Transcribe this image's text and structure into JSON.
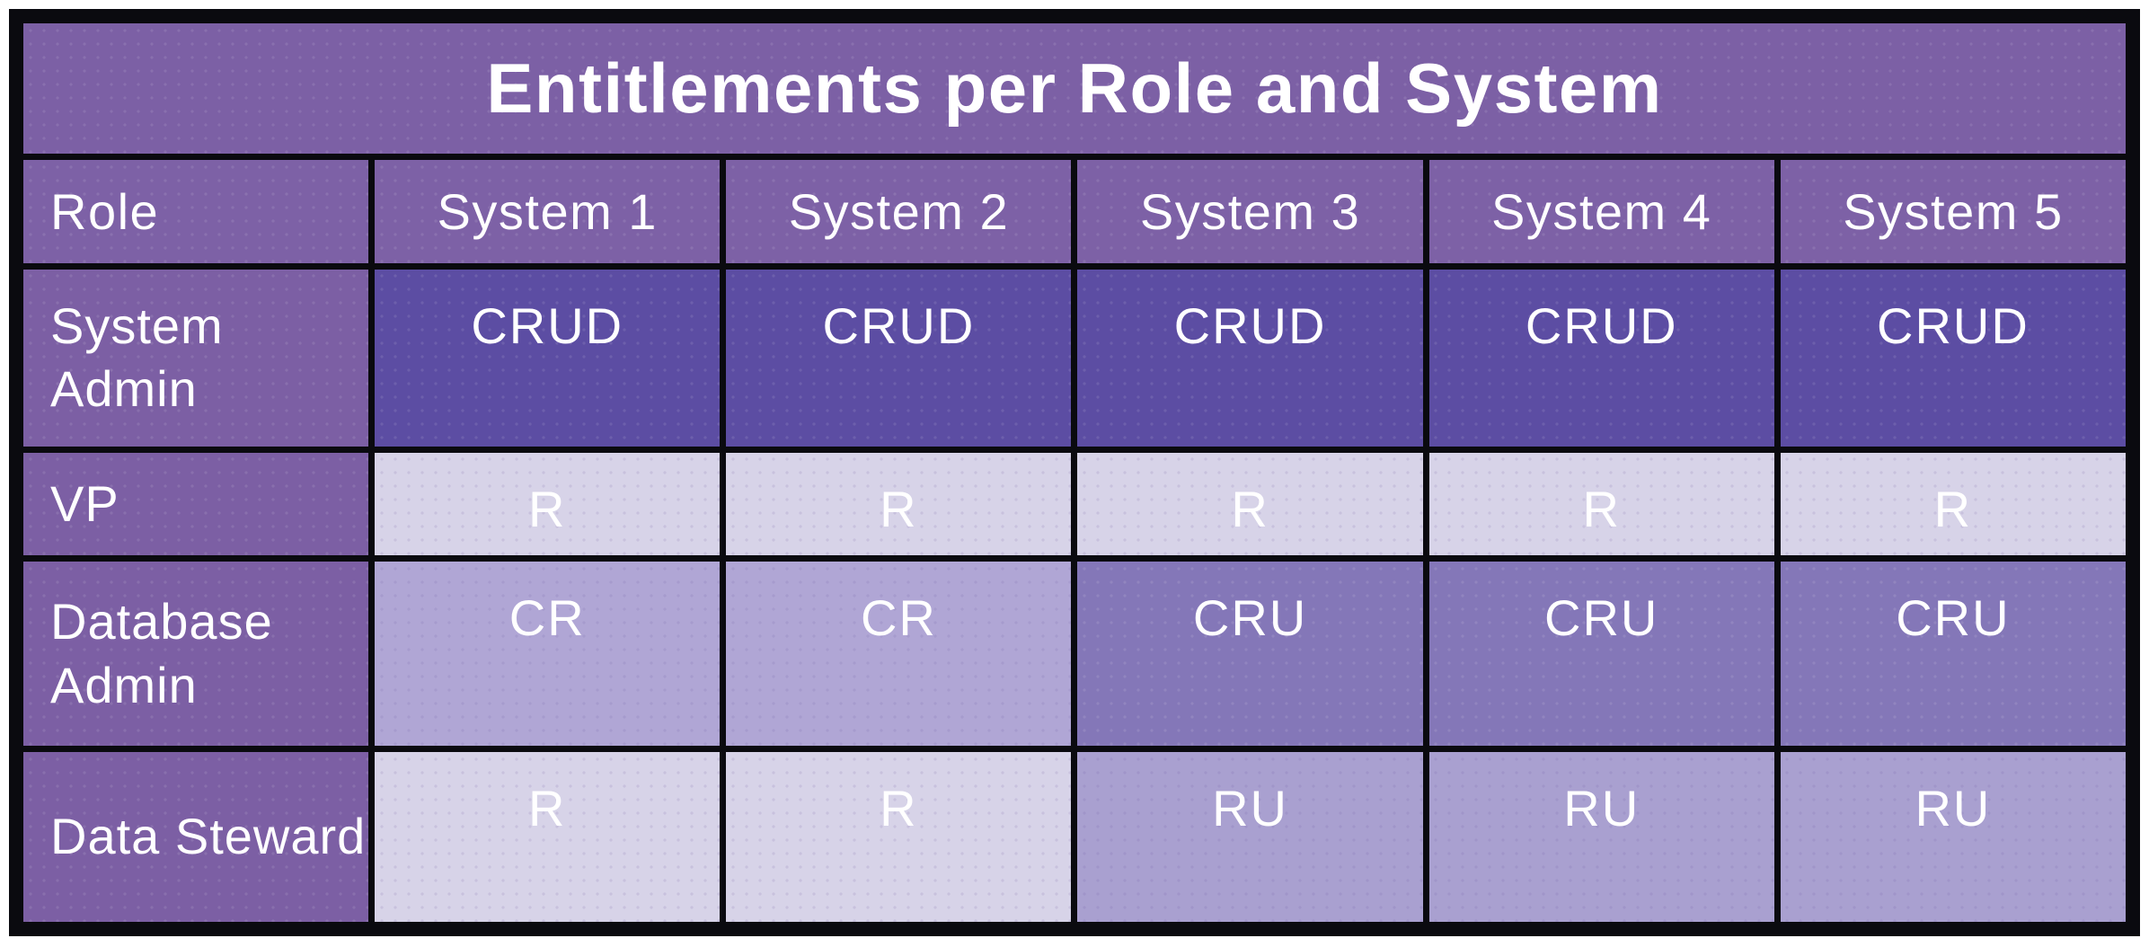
{
  "title": "Entitlements per Role and System",
  "colors": {
    "header_purple": "#7c60a5",
    "role_purple": "#7c5fa4",
    "crud": "#5c4da3",
    "cru": "#8477b8",
    "cr": "#b0a6d5",
    "ru": "#a9a0d0",
    "r": "#d7d3e8",
    "border": "#0a0a0f",
    "text": "#ffffff",
    "page_background": "#ffffff"
  },
  "table": {
    "columns": [
      "Role",
      "System 1",
      "System 2",
      "System 3",
      "System 4",
      "System 5"
    ],
    "rows": [
      {
        "role": "System Admin",
        "key": "sysadmin",
        "cells": [
          "CRUD",
          "CRUD",
          "CRUD",
          "CRUD",
          "CRUD"
        ]
      },
      {
        "role": "VP",
        "key": "vp",
        "cells": [
          "R",
          "R",
          "R",
          "R",
          "R"
        ]
      },
      {
        "role": "Database Admin",
        "key": "dbadmin",
        "cells": [
          "CR",
          "CR",
          "CRU",
          "CRU",
          "CRU"
        ]
      },
      {
        "role": "Data Steward",
        "key": "steward",
        "cells": [
          "R",
          "R",
          "RU",
          "RU",
          "RU"
        ]
      }
    ]
  },
  "chart_data": {
    "type": "table",
    "title": "Entitlements per Role and System",
    "columns": [
      "Role",
      "System 1",
      "System 2",
      "System 3",
      "System 4",
      "System 5"
    ],
    "rows": [
      [
        "System Admin",
        "CRUD",
        "CRUD",
        "CRUD",
        "CRUD",
        "CRUD"
      ],
      [
        "VP",
        "R",
        "R",
        "R",
        "R",
        "R"
      ],
      [
        "Database Admin",
        "CR",
        "CR",
        "CRU",
        "CRU",
        "CRU"
      ],
      [
        "Data Steward",
        "R",
        "R",
        "RU",
        "RU",
        "RU"
      ]
    ],
    "legend_note": "cell shading encodes number of permissions: CRUD darkest, R lightest",
    "grid": true
  }
}
